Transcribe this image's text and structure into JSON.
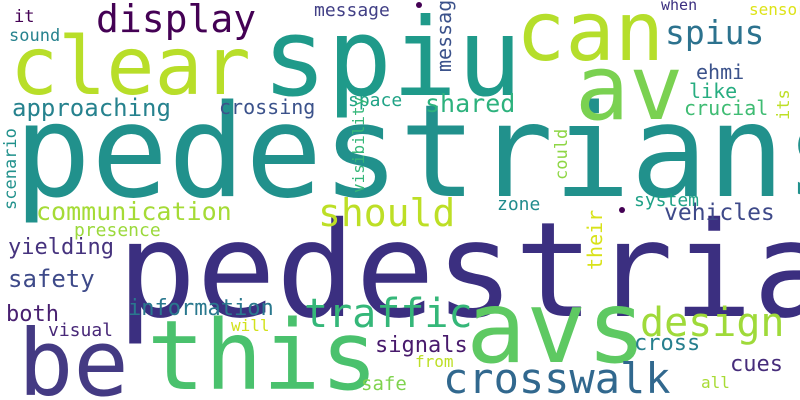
{
  "words": [
    {
      "text": "pedestrians",
      "color": "#21918c"
    },
    {
      "text": "pedestrian",
      "color": "#3b2f80"
    },
    {
      "text": "spiu",
      "color": "#1f9a8a"
    },
    {
      "text": "avs",
      "color": "#5ec962"
    },
    {
      "text": "av",
      "color": "#7ad151"
    },
    {
      "text": "can",
      "color": "#b5de2b"
    },
    {
      "text": "clear",
      "color": "#b8de29"
    },
    {
      "text": "this",
      "color": "#4ac16d"
    },
    {
      "text": "be",
      "color": "#443a83"
    },
    {
      "text": "crosswalk",
      "color": "#31688e"
    },
    {
      "text": "display",
      "color": "#440154"
    },
    {
      "text": "design",
      "color": "#9fda3a"
    },
    {
      "text": "traffic",
      "color": "#35b779"
    },
    {
      "text": "should",
      "color": "#bddf26"
    },
    {
      "text": "approaching",
      "color": "#26828e"
    },
    {
      "text": "communication",
      "color": "#a5db36"
    },
    {
      "text": "spius",
      "color": "#2c728e"
    },
    {
      "text": "shared",
      "color": "#2db27d"
    },
    {
      "text": "vehicles",
      "color": "#3e4989"
    },
    {
      "text": "safety",
      "color": "#3e4a89"
    },
    {
      "text": "information",
      "color": "#2a788e"
    },
    {
      "text": "yielding",
      "color": "#46337e"
    },
    {
      "text": "crossing",
      "color": "#3b528b"
    },
    {
      "text": "message",
      "color": "#424086"
    },
    {
      "text": "ehmi",
      "color": "#3b528b"
    },
    {
      "text": "like",
      "color": "#27ad81"
    },
    {
      "text": "crucial",
      "color": "#3fbc73"
    },
    {
      "text": "space",
      "color": "#20a386"
    },
    {
      "text": "both",
      "color": "#481f70"
    },
    {
      "text": "visual",
      "color": "#482878"
    },
    {
      "text": "signals",
      "color": "#481a6c"
    },
    {
      "text": "cross",
      "color": "#277f8e"
    },
    {
      "text": "cues",
      "color": "#472d7b"
    },
    {
      "text": "safe",
      "color": "#7fd34e"
    },
    {
      "text": "from",
      "color": "#bddf26"
    },
    {
      "text": "will",
      "color": "#d2e21b"
    },
    {
      "text": "all",
      "color": "#a8db34"
    },
    {
      "text": "presence",
      "color": "#9bd93c"
    },
    {
      "text": "zone",
      "color": "#228c8d"
    },
    {
      "text": "system",
      "color": "#1fa187"
    },
    {
      "text": "it",
      "color": "#440154"
    },
    {
      "text": "sound",
      "color": "#26828e"
    },
    {
      "text": "when",
      "color": "#3b2f80"
    },
    {
      "text": "sensors",
      "color": "#dde318"
    },
    {
      "text": "its",
      "color": "#bddf26"
    },
    {
      "text": "their",
      "color": "#d8e219"
    },
    {
      "text": "could",
      "color": "#8ed645"
    },
    {
      "text": "visibility",
      "color": "#35b779"
    },
    {
      "text": "messages",
      "color": "#20a486"
    },
    {
      "text": "scenario",
      "color": "#21918c"
    }
  ]
}
